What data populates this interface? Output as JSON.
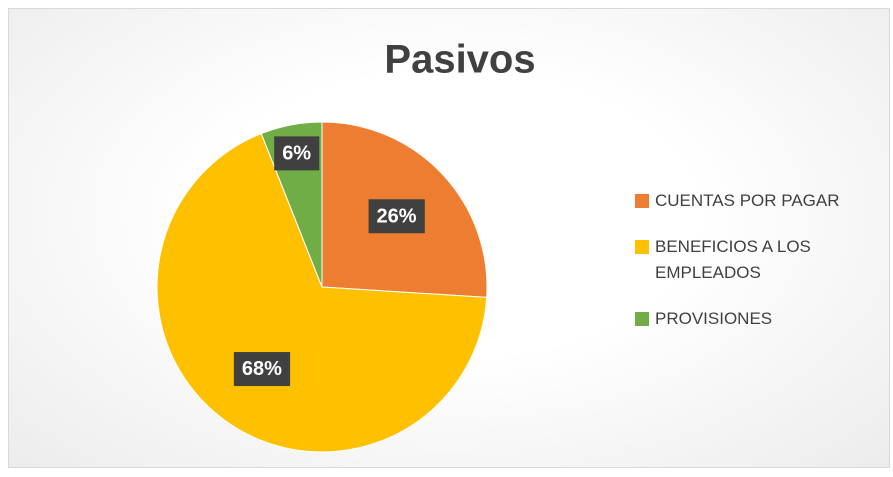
{
  "chart_data": {
    "type": "pie",
    "title": "Pasivos",
    "categories": [
      "CUENTAS POR PAGAR",
      "BENEFICIOS A LOS EMPLEADOS",
      "PROVISIONES"
    ],
    "values": [
      26,
      68,
      6
    ],
    "value_labels": [
      "26%",
      "68%",
      "6%"
    ],
    "colors": [
      "#ED7D31",
      "#FFC000",
      "#70AD47"
    ],
    "legend": "right"
  }
}
